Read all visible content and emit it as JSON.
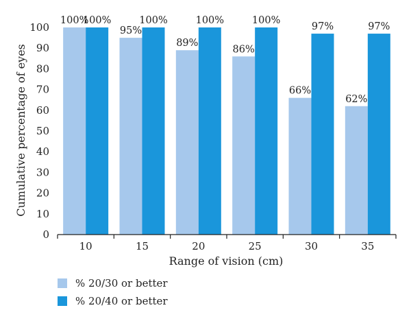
{
  "chart_data": {
    "type": "bar",
    "categories": [
      "10",
      "15",
      "20",
      "25",
      "30",
      "35"
    ],
    "series": [
      {
        "name": "% 20/30 or better",
        "values": [
          100,
          95,
          89,
          86,
          66,
          62
        ],
        "labels": [
          "100%",
          "95%",
          "89%",
          "86%",
          "66%",
          "62%"
        ],
        "color": "#a6c8ec"
      },
      {
        "name": "% 20/40 or better",
        "values": [
          100,
          100,
          100,
          100,
          97,
          97
        ],
        "labels": [
          "100%",
          "100%",
          "100%",
          "100%",
          "97%",
          "97%"
        ],
        "color": "#1a96db"
      }
    ],
    "title": "",
    "xlabel": "Range of vision (cm)",
    "ylabel": "Cumulative percentage of eyes",
    "ylim": [
      0,
      100
    ],
    "yticks": [
      "0",
      "10",
      "20",
      "30",
      "40",
      "50",
      "60",
      "70",
      "80",
      "90",
      "100"
    ],
    "grid": false,
    "legend_position": "bottom-left"
  }
}
